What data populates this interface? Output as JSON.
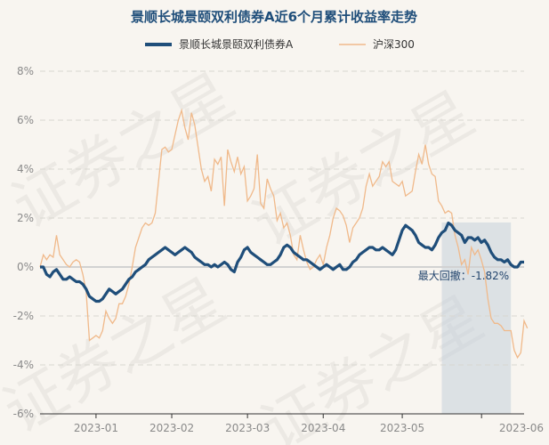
{
  "chart_data": {
    "type": "line",
    "title": "景顺长城景颐双利债券A近6个月累计收益率走势",
    "y_unit": "%",
    "ylim": [
      -6,
      8
    ],
    "y_ticks": [
      "8%",
      "6%",
      "4%",
      "2%",
      "0%",
      "-2%",
      "-4%",
      "-6%"
    ],
    "x_ticks": [
      "2023-01",
      "2023-02",
      "2023-03",
      "2023-04",
      "2023-05",
      "2023-06"
    ],
    "grid": "horizontal-dashed",
    "legend_position": "top-center",
    "watermark": "证券之星",
    "colors": {
      "fund": "#1f4e7a",
      "index": "#f0b98a",
      "drawdown": "#c5d0da",
      "title": "#1f4e7a"
    },
    "series": [
      {
        "name": "景顺长城景颐双利债券A",
        "values": [
          0.0,
          0.0,
          -0.3,
          -0.4,
          -0.2,
          -0.1,
          -0.3,
          -0.5,
          -0.5,
          -0.4,
          -0.5,
          -0.6,
          -0.6,
          -0.7,
          -0.9,
          -1.2,
          -1.3,
          -1.4,
          -1.4,
          -1.3,
          -1.1,
          -0.9,
          -1.0,
          -1.1,
          -1.0,
          -0.9,
          -0.7,
          -0.5,
          -0.4,
          -0.2,
          -0.1,
          0.0,
          0.1,
          0.3,
          0.4,
          0.5,
          0.6,
          0.7,
          0.8,
          0.7,
          0.6,
          0.5,
          0.6,
          0.7,
          0.8,
          0.7,
          0.6,
          0.4,
          0.3,
          0.2,
          0.1,
          0.1,
          0.0,
          0.1,
          0.0,
          0.1,
          0.2,
          0.1,
          -0.1,
          -0.2,
          0.2,
          0.4,
          0.7,
          0.8,
          0.6,
          0.5,
          0.4,
          0.3,
          0.2,
          0.1,
          0.1,
          0.2,
          0.3,
          0.5,
          0.8,
          0.9,
          0.8,
          0.6,
          0.5,
          0.4,
          0.3,
          0.3,
          0.2,
          0.1,
          0.0,
          -0.1,
          0.0,
          0.1,
          0.0,
          -0.1,
          0.0,
          0.1,
          -0.1,
          -0.1,
          0.0,
          0.2,
          0.3,
          0.5,
          0.6,
          0.7,
          0.8,
          0.8,
          0.7,
          0.7,
          0.8,
          0.7,
          0.6,
          0.5,
          0.7,
          1.1,
          1.5,
          1.7,
          1.6,
          1.5,
          1.3,
          1.0,
          0.9,
          0.8,
          0.8,
          0.7,
          0.9,
          1.2,
          1.4,
          1.5,
          1.8,
          1.7,
          1.5,
          1.4,
          1.3,
          1.0,
          1.2,
          1.2,
          1.1,
          1.2,
          1.0,
          1.1,
          0.9,
          0.6,
          0.4,
          0.3,
          0.3,
          0.2,
          0.3,
          0.1,
          0.0,
          0.0,
          0.2,
          0.2
        ]
      },
      {
        "name": "沪深300",
        "values": [
          0.0,
          0.5,
          0.3,
          0.5,
          0.4,
          1.3,
          0.5,
          0.3,
          0.1,
          0.0,
          0.2,
          0.3,
          0.2,
          -0.3,
          -1.0,
          -3.0,
          -2.9,
          -2.8,
          -2.9,
          -2.6,
          -1.8,
          -2.1,
          -2.3,
          -2.1,
          -1.5,
          -1.5,
          -1.2,
          -0.7,
          0.0,
          0.8,
          1.2,
          1.6,
          1.8,
          1.7,
          1.8,
          2.2,
          3.5,
          4.8,
          4.9,
          4.7,
          4.8,
          5.4,
          6.0,
          6.4,
          5.7,
          5.2,
          6.3,
          5.8,
          4.9,
          4.0,
          3.5,
          3.7,
          3.1,
          4.4,
          4.2,
          4.5,
          2.5,
          4.8,
          4.3,
          3.9,
          4.5,
          3.8,
          4.1,
          2.7,
          2.9,
          3.2,
          4.6,
          2.6,
          2.4,
          3.6,
          3.2,
          2.9,
          1.9,
          2.2,
          1.6,
          1.8,
          1.3,
          0.5,
          0.3,
          1.3,
          0.7,
          0.2,
          -0.1,
          0.0,
          0.3,
          0.5,
          0.1,
          0.8,
          1.3,
          2.0,
          2.4,
          2.3,
          2.1,
          1.7,
          1.0,
          1.6,
          1.8,
          2.0,
          2.4,
          3.3,
          3.8,
          3.3,
          3.5,
          3.7,
          4.3,
          4.1,
          4.3,
          3.5,
          3.4,
          3.3,
          3.5,
          2.9,
          3.0,
          3.1,
          3.9,
          4.6,
          4.2,
          5.0,
          4.2,
          3.8,
          3.7,
          2.7,
          2.5,
          2.2,
          2.3,
          2.2,
          1.3,
          0.8,
          0.1,
          0.3,
          -0.3,
          0.8,
          0.5,
          0.7,
          0.3,
          -0.2,
          -1.3,
          -2.1,
          -2.3,
          -2.3,
          -2.4,
          -2.6,
          -2.6,
          -2.6,
          -3.4,
          -3.7,
          -3.5,
          -2.2,
          -2.5
        ]
      }
    ],
    "drawdown": {
      "label": "最大回撤：-1.82%",
      "start_index": 122,
      "end_index": 143
    }
  }
}
